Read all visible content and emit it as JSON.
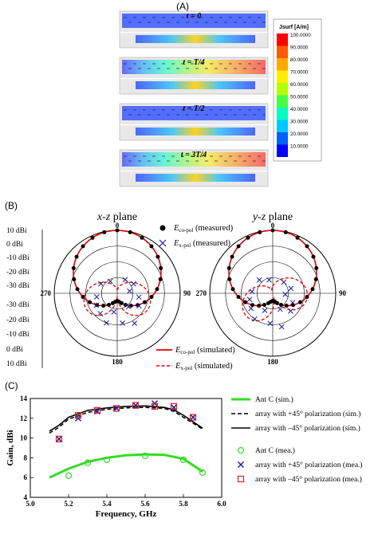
{
  "panel_a": {
    "label": "(A)",
    "snapshots": [
      "t = 0",
      "t = T/4",
      "t = T/2",
      "t = 3T/4"
    ],
    "colorbar": {
      "title": "Jsurf [A/m]",
      "ticks": [
        "100.0000",
        "90.0000",
        "80.0000",
        "70.0000",
        "60.0000",
        "50.0000",
        "40.0000",
        "30.0000",
        "20.0000",
        "10.0000"
      ],
      "colors": [
        "#ff0000",
        "#ff5a00",
        "#ffaa00",
        "#ffee00",
        "#b4ff00",
        "#44ff44",
        "#00ffc0",
        "#00c8ff",
        "#0060ff",
        "#0000ff"
      ]
    }
  },
  "panel_b": {
    "label": "(B)",
    "planes": [
      {
        "title_main": "x-z",
        "title_rest": " plane"
      },
      {
        "title_main": "y-z",
        "title_rest": " plane"
      }
    ],
    "dbi_scale": [
      "10 dBi",
      "0 dBi",
      "-10 dBi",
      "-20 dBi",
      "-30 dBi",
      "-30 dBi",
      "-20 dBi",
      "-10 dBi",
      "0 dBi",
      "10 dBi"
    ],
    "angle_labels": {
      "top": "0",
      "right": "90",
      "bottom": "180",
      "left": "270"
    },
    "legend_top": [
      {
        "symbol": "circle",
        "base": "E",
        "sub": "co-pol",
        "text": " (measured)"
      },
      {
        "symbol": "x",
        "base": "E",
        "sub": "x-pol",
        "text": " (measured)"
      }
    ],
    "legend_bottom": [
      {
        "symbol": "solid",
        "base": "E",
        "sub": "co-pol",
        "text": " (simulated)"
      },
      {
        "symbol": "dashed",
        "base": "E",
        "sub": "x-pol",
        "text": " (simulated)"
      }
    ],
    "colors": {
      "copol": "#e00000",
      "xpol_marker": "#1a1aa0",
      "measured": "#000000"
    }
  },
  "chart_data": [
    {
      "type": "line",
      "panel": "(C)",
      "xlabel": "Frequency, GHz",
      "ylabel": "Gain, dBi",
      "xlim": [
        5.0,
        6.0
      ],
      "ylim": [
        4,
        14
      ],
      "xticks": [
        "5.0",
        "5.2",
        "5.4",
        "5.6",
        "5.8",
        "6.0"
      ],
      "yticks": [
        "4",
        "6",
        "8",
        "10",
        "12",
        "14"
      ],
      "legend_placement": "right",
      "series": [
        {
          "name": "Ant C (sim.)",
          "style": "solid-green",
          "x": [
            5.1,
            5.2,
            5.3,
            5.4,
            5.5,
            5.6,
            5.7,
            5.8,
            5.9
          ],
          "y": [
            6.0,
            6.9,
            7.6,
            8.0,
            8.25,
            8.35,
            8.3,
            7.9,
            6.6
          ]
        },
        {
          "name": "array with +45° polarization (sim.)",
          "style": "dashed-black",
          "x": [
            5.1,
            5.15,
            5.2,
            5.3,
            5.4,
            5.5,
            5.6,
            5.7,
            5.75,
            5.8,
            5.9
          ],
          "y": [
            10.5,
            11.1,
            11.9,
            12.6,
            12.9,
            13.05,
            13.1,
            13.0,
            12.7,
            12.1,
            10.9
          ]
        },
        {
          "name": "array with –45° polarization (sim.)",
          "style": "solid-black",
          "x": [
            5.1,
            5.15,
            5.2,
            5.3,
            5.4,
            5.5,
            5.6,
            5.7,
            5.75,
            5.8,
            5.9
          ],
          "y": [
            10.7,
            11.3,
            12.1,
            12.8,
            13.05,
            13.2,
            13.25,
            13.1,
            12.85,
            12.3,
            11.0
          ]
        },
        {
          "name": "Ant C (mea.)",
          "style": "circle-green",
          "x": [
            5.2,
            5.3,
            5.4,
            5.6,
            5.8,
            5.9
          ],
          "y": [
            6.2,
            7.5,
            7.8,
            8.2,
            7.8,
            6.5
          ]
        },
        {
          "name": "array with +45° polarization (mea.)",
          "style": "x-blue",
          "x": [
            5.15,
            5.25,
            5.35,
            5.45,
            5.55,
            5.65,
            5.75,
            5.85
          ],
          "y": [
            9.9,
            12.0,
            12.7,
            13.0,
            13.3,
            13.5,
            13.1,
            12.1
          ]
        },
        {
          "name": "array with –45° polarization (mea.)",
          "style": "square-red",
          "x": [
            5.15,
            5.25,
            5.35,
            5.45,
            5.55,
            5.65,
            5.75,
            5.85
          ],
          "y": [
            9.9,
            12.3,
            12.8,
            13.0,
            13.3,
            13.2,
            13.2,
            12.1
          ]
        }
      ]
    }
  ]
}
